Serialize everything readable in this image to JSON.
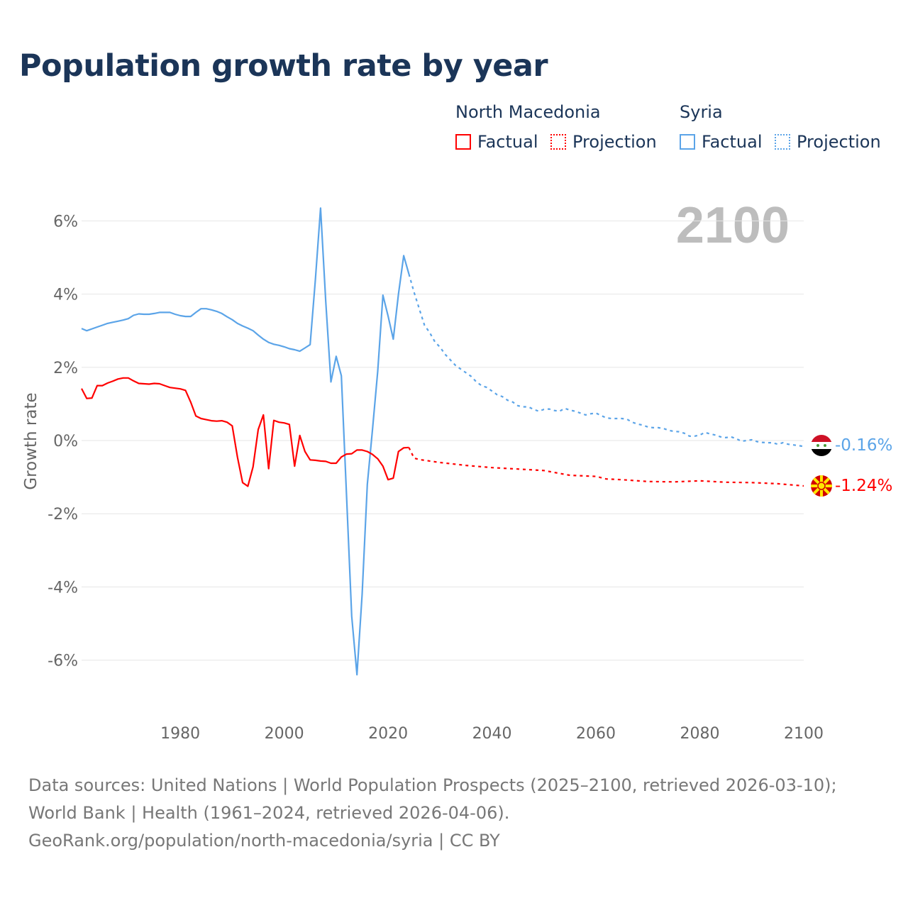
{
  "title": "Population growth rate by year",
  "legend": {
    "groups": [
      {
        "name": "North Macedonia",
        "factual": "Factual",
        "projection": "Projection",
        "color": "#ff0000"
      },
      {
        "name": "Syria",
        "factual": "Factual",
        "projection": "Projection",
        "color": "#5ba4e8"
      }
    ]
  },
  "year_label": "2100",
  "end_labels": {
    "syria": "-0.16%",
    "north_macedonia": "-1.24%"
  },
  "sources": "Data sources: United Nations | World Population Prospects (2025–2100, retrieved 2026-03-10); World Bank | Health (1961–2024, retrieved 2026-04-06).",
  "credit": "GeoRank.org/population/north-macedonia/syria | CC BY",
  "chart_data": {
    "type": "line",
    "title": "Population growth rate by year",
    "ylabel": "Growth rate",
    "xlabel": "",
    "xlim": [
      1961,
      2100
    ],
    "ylim": [
      -7,
      7
    ],
    "yticks": [
      6,
      4,
      2,
      0,
      -2,
      -4,
      -6
    ],
    "ytick_labels": [
      "6%",
      "4%",
      "2%",
      "0%",
      "-2%",
      "-4%",
      "-6%"
    ],
    "xticks": [
      1980,
      2000,
      2020,
      2040,
      2060,
      2080,
      2100
    ],
    "xtick_labels": [
      "1980",
      "2000",
      "2020",
      "2040",
      "2060",
      "2080",
      "2100"
    ],
    "grid": true,
    "series": [
      {
        "name": "Syria",
        "kind": "factual",
        "color": "#5ba4e8",
        "x_start": 1961,
        "values": [
          3.06,
          3.0,
          3.05,
          3.1,
          3.15,
          3.2,
          3.23,
          3.26,
          3.29,
          3.33,
          3.42,
          3.46,
          3.45,
          3.45,
          3.47,
          3.5,
          3.5,
          3.5,
          3.45,
          3.41,
          3.39,
          3.39,
          3.5,
          3.6,
          3.6,
          3.57,
          3.53,
          3.47,
          3.38,
          3.3,
          3.2,
          3.13,
          3.07,
          3.0,
          2.88,
          2.77,
          2.68,
          2.63,
          2.6,
          2.56,
          2.51,
          2.48,
          2.44,
          2.53,
          2.62,
          4.4,
          6.35,
          3.8,
          1.6,
          2.3,
          1.77,
          -1.5,
          -4.8,
          -6.4,
          -4.2,
          -1.2,
          0.3,
          1.9,
          3.97,
          3.4,
          2.77,
          4.0,
          5.05,
          4.55
        ]
      },
      {
        "name": "Syria",
        "kind": "projection",
        "color": "#5ba4e8",
        "x_start": 2024,
        "values": [
          4.55,
          4.05,
          3.6,
          3.15,
          2.95,
          2.7,
          2.55,
          2.35,
          2.2,
          2.05,
          1.95,
          1.85,
          1.75,
          1.6,
          1.5,
          1.45,
          1.35,
          1.25,
          1.2,
          1.1,
          1.05,
          0.95,
          0.92,
          0.92,
          0.85,
          0.8,
          0.85,
          0.86,
          0.82,
          0.8,
          0.88,
          0.83,
          0.8,
          0.75,
          0.7,
          0.73,
          0.75,
          0.68,
          0.62,
          0.6,
          0.6,
          0.6,
          0.58,
          0.5,
          0.45,
          0.42,
          0.37,
          0.35,
          0.35,
          0.33,
          0.28,
          0.25,
          0.24,
          0.2,
          0.12,
          0.12,
          0.15,
          0.22,
          0.18,
          0.15,
          0.1,
          0.08,
          0.1,
          0.05,
          -0.02,
          0.0,
          0.02,
          -0.03,
          -0.05,
          -0.06,
          -0.06,
          -0.1,
          -0.06,
          -0.1,
          -0.12,
          -0.14,
          -0.16
        ]
      },
      {
        "name": "North Macedonia",
        "kind": "factual",
        "color": "#ff0000",
        "x_start": 1961,
        "values": [
          1.42,
          1.15,
          1.16,
          1.5,
          1.5,
          1.57,
          1.62,
          1.68,
          1.71,
          1.71,
          1.63,
          1.56,
          1.55,
          1.54,
          1.56,
          1.55,
          1.5,
          1.45,
          1.43,
          1.41,
          1.37,
          1.05,
          0.67,
          0.6,
          0.57,
          0.54,
          0.53,
          0.54,
          0.5,
          0.4,
          -0.45,
          -1.15,
          -1.25,
          -0.72,
          0.3,
          0.7,
          -0.77,
          0.55,
          0.5,
          0.48,
          0.44,
          -0.7,
          0.14,
          -0.3,
          -0.53,
          -0.54,
          -0.56,
          -0.57,
          -0.62,
          -0.62,
          -0.45,
          -0.37,
          -0.36,
          -0.26,
          -0.26,
          -0.3,
          -0.38,
          -0.5,
          -0.7,
          -1.07,
          -1.03,
          -0.3,
          -0.2,
          -0.19
        ]
      },
      {
        "name": "North Macedonia",
        "kind": "projection",
        "color": "#ff0000",
        "x": [
          2024,
          2025,
          2026,
          2030,
          2035,
          2040,
          2045,
          2050,
          2055,
          2060,
          2062,
          2065,
          2070,
          2075,
          2080,
          2085,
          2090,
          2095,
          2100
        ],
        "values": [
          -0.19,
          -0.48,
          -0.52,
          -0.6,
          -0.68,
          -0.74,
          -0.78,
          -0.82,
          -0.95,
          -0.98,
          -1.05,
          -1.07,
          -1.12,
          -1.13,
          -1.1,
          -1.14,
          -1.15,
          -1.18,
          -1.24
        ]
      }
    ]
  }
}
